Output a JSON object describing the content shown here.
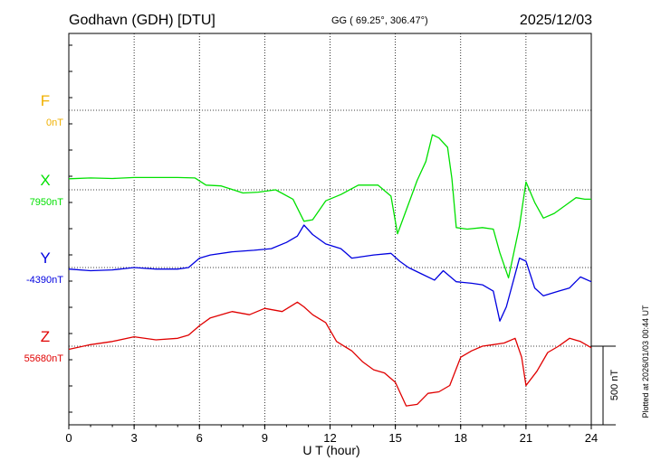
{
  "chart_data": {
    "type": "line",
    "title": "Godhavn (GDH)  [DTU]",
    "subtitle": "GG ( 69.25°, 306.47°)",
    "date": "2025/12/03",
    "xlabel": "U T (hour)",
    "xlim": [
      0,
      24
    ],
    "xticks": [
      "0",
      "3",
      "6",
      "9",
      "12",
      "15",
      "18",
      "21",
      "24"
    ],
    "scale_label": "500 nT",
    "plotted_note": "Plotted at 2026/01/03 00:44 UT",
    "grid": true,
    "series": [
      {
        "name": "F",
        "baseline": "0nT",
        "color": "#f0b000",
        "x": [],
        "y": []
      },
      {
        "name": "X",
        "baseline": "7950nT",
        "color": "#00e000",
        "x": [
          0,
          1,
          2,
          3,
          4,
          5,
          5.8,
          6.3,
          7,
          8,
          8.7,
          9.5,
          10.3,
          10.8,
          11.2,
          11.8,
          12.5,
          13.3,
          14.2,
          14.8,
          15.1,
          15.5,
          16,
          16.4,
          16.7,
          17,
          17.4,
          17.6,
          17.8,
          18.3,
          19,
          19.5,
          19.8,
          20.2,
          20.7,
          21,
          21.4,
          21.8,
          22.3,
          22.8,
          23.3,
          23.7,
          24
        ],
        "y": [
          70,
          75,
          72,
          78,
          78,
          78,
          75,
          30,
          25,
          -20,
          -15,
          0,
          -60,
          -200,
          -190,
          -70,
          -30,
          30,
          30,
          -40,
          -280,
          -130,
          60,
          180,
          350,
          330,
          270,
          70,
          -240,
          -250,
          -240,
          -250,
          -400,
          -560,
          -230,
          50,
          -80,
          -180,
          -150,
          -100,
          -50,
          -60,
          -60
        ]
      },
      {
        "name": "Y",
        "baseline": "-4390nT",
        "color": "#0000e0",
        "x": [
          0,
          1,
          2,
          3,
          4,
          5,
          5.5,
          6,
          6.5,
          7.5,
          8.5,
          9.3,
          10,
          10.5,
          10.8,
          11.2,
          11.8,
          12.5,
          13,
          14,
          14.8,
          15.2,
          15.6,
          16.2,
          16.8,
          17.2,
          17.8,
          18.5,
          19,
          19.5,
          19.8,
          20.1,
          20.7,
          21,
          21.4,
          21.8,
          22.5,
          23,
          23.5,
          24
        ],
        "y": [
          -10,
          -20,
          -15,
          0,
          -10,
          -10,
          0,
          60,
          80,
          100,
          110,
          120,
          160,
          200,
          270,
          210,
          150,
          120,
          60,
          80,
          90,
          40,
          0,
          -40,
          -80,
          -20,
          -90,
          -100,
          -110,
          -150,
          -340,
          -250,
          60,
          40,
          -130,
          -180,
          -150,
          -130,
          -60,
          -90
        ]
      },
      {
        "name": "Z",
        "baseline": "55680nT",
        "color": "#e00000",
        "x": [
          0,
          1,
          2,
          3,
          4,
          5,
          5.5,
          6,
          6.5,
          7.5,
          8.3,
          9,
          9.8,
          10.5,
          10.8,
          11.2,
          11.8,
          12.3,
          13,
          13.5,
          14,
          14.5,
          15,
          15.5,
          16,
          16.5,
          17,
          17.5,
          18,
          18.5,
          19,
          19.5,
          20,
          20.5,
          20.8,
          21,
          21.5,
          22,
          22.5,
          23,
          23.5,
          24
        ],
        "y": [
          -20,
          10,
          30,
          60,
          40,
          50,
          70,
          130,
          180,
          220,
          200,
          240,
          220,
          280,
          250,
          200,
          150,
          30,
          -30,
          -100,
          -150,
          -170,
          -230,
          -380,
          -370,
          -300,
          -290,
          -250,
          -70,
          -30,
          0,
          10,
          20,
          50,
          -70,
          -250,
          -160,
          -40,
          0,
          50,
          30,
          -10
        ]
      }
    ]
  }
}
